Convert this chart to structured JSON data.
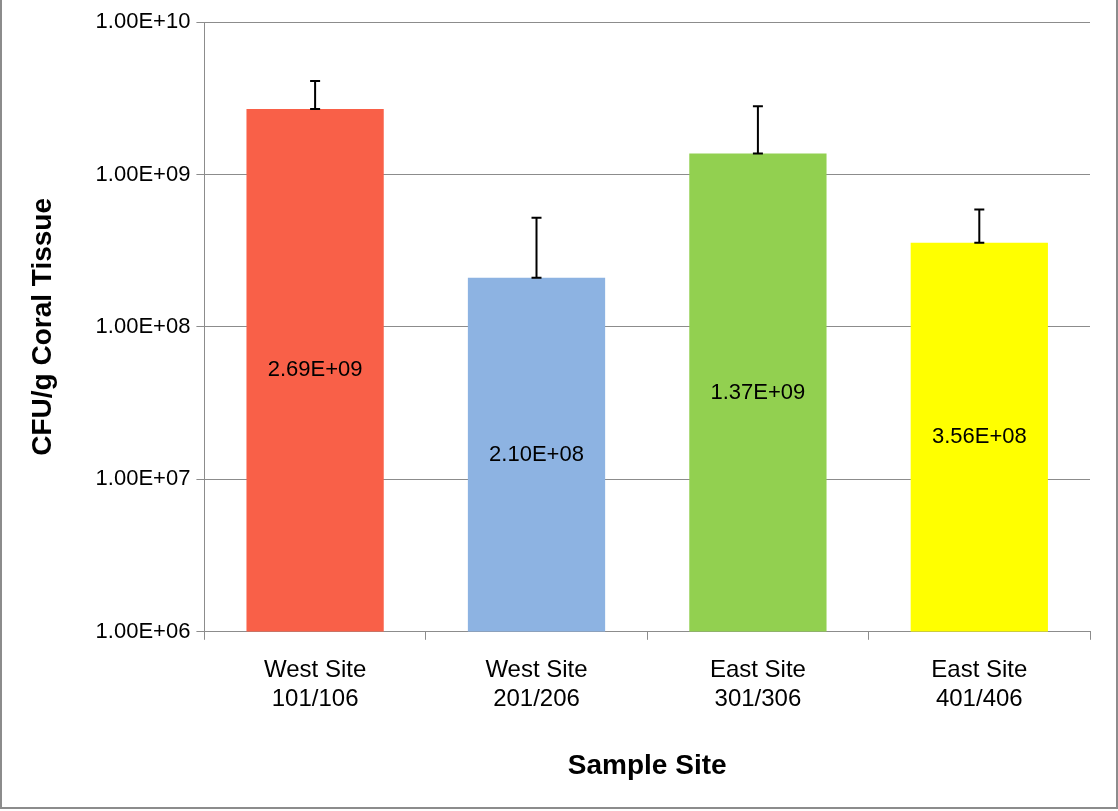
{
  "chart_data": {
    "type": "bar",
    "xlabel": "Sample Site",
    "ylabel": "CFU/g Coral Tissue",
    "categories": [
      "West Site\n101/106",
      "West Site\n201/206",
      "East Site\n301/306",
      "East Site\n401/406"
    ],
    "values": [
      2690000000,
      210000000,
      1370000000,
      356000000
    ],
    "colors": [
      "#f96048",
      "#8db3e2",
      "#92d050",
      "#ffff00"
    ],
    "value_labels": [
      "2.69E+09",
      "2.10E+08",
      "1.37E+09",
      "3.56E+08"
    ],
    "errors": [
      [
        2690000000,
        4100000000
      ],
      [
        210000000,
        520000000
      ],
      [
        1370000000,
        2800000000
      ],
      [
        356000000,
        590000000
      ]
    ],
    "log": "y",
    "ylim": [
      1000000,
      10000000000
    ],
    "yticks": [
      {
        "value": 1000000,
        "label": "1.00E+06"
      },
      {
        "value": 10000000,
        "label": "1.00E+07"
      },
      {
        "value": 100000000,
        "label": "1.00E+08"
      },
      {
        "value": 1000000000,
        "label": "1.00E+09"
      },
      {
        "value": 10000000000,
        "label": "1.00E+10"
      }
    ],
    "grid": "y",
    "legend": false
  }
}
